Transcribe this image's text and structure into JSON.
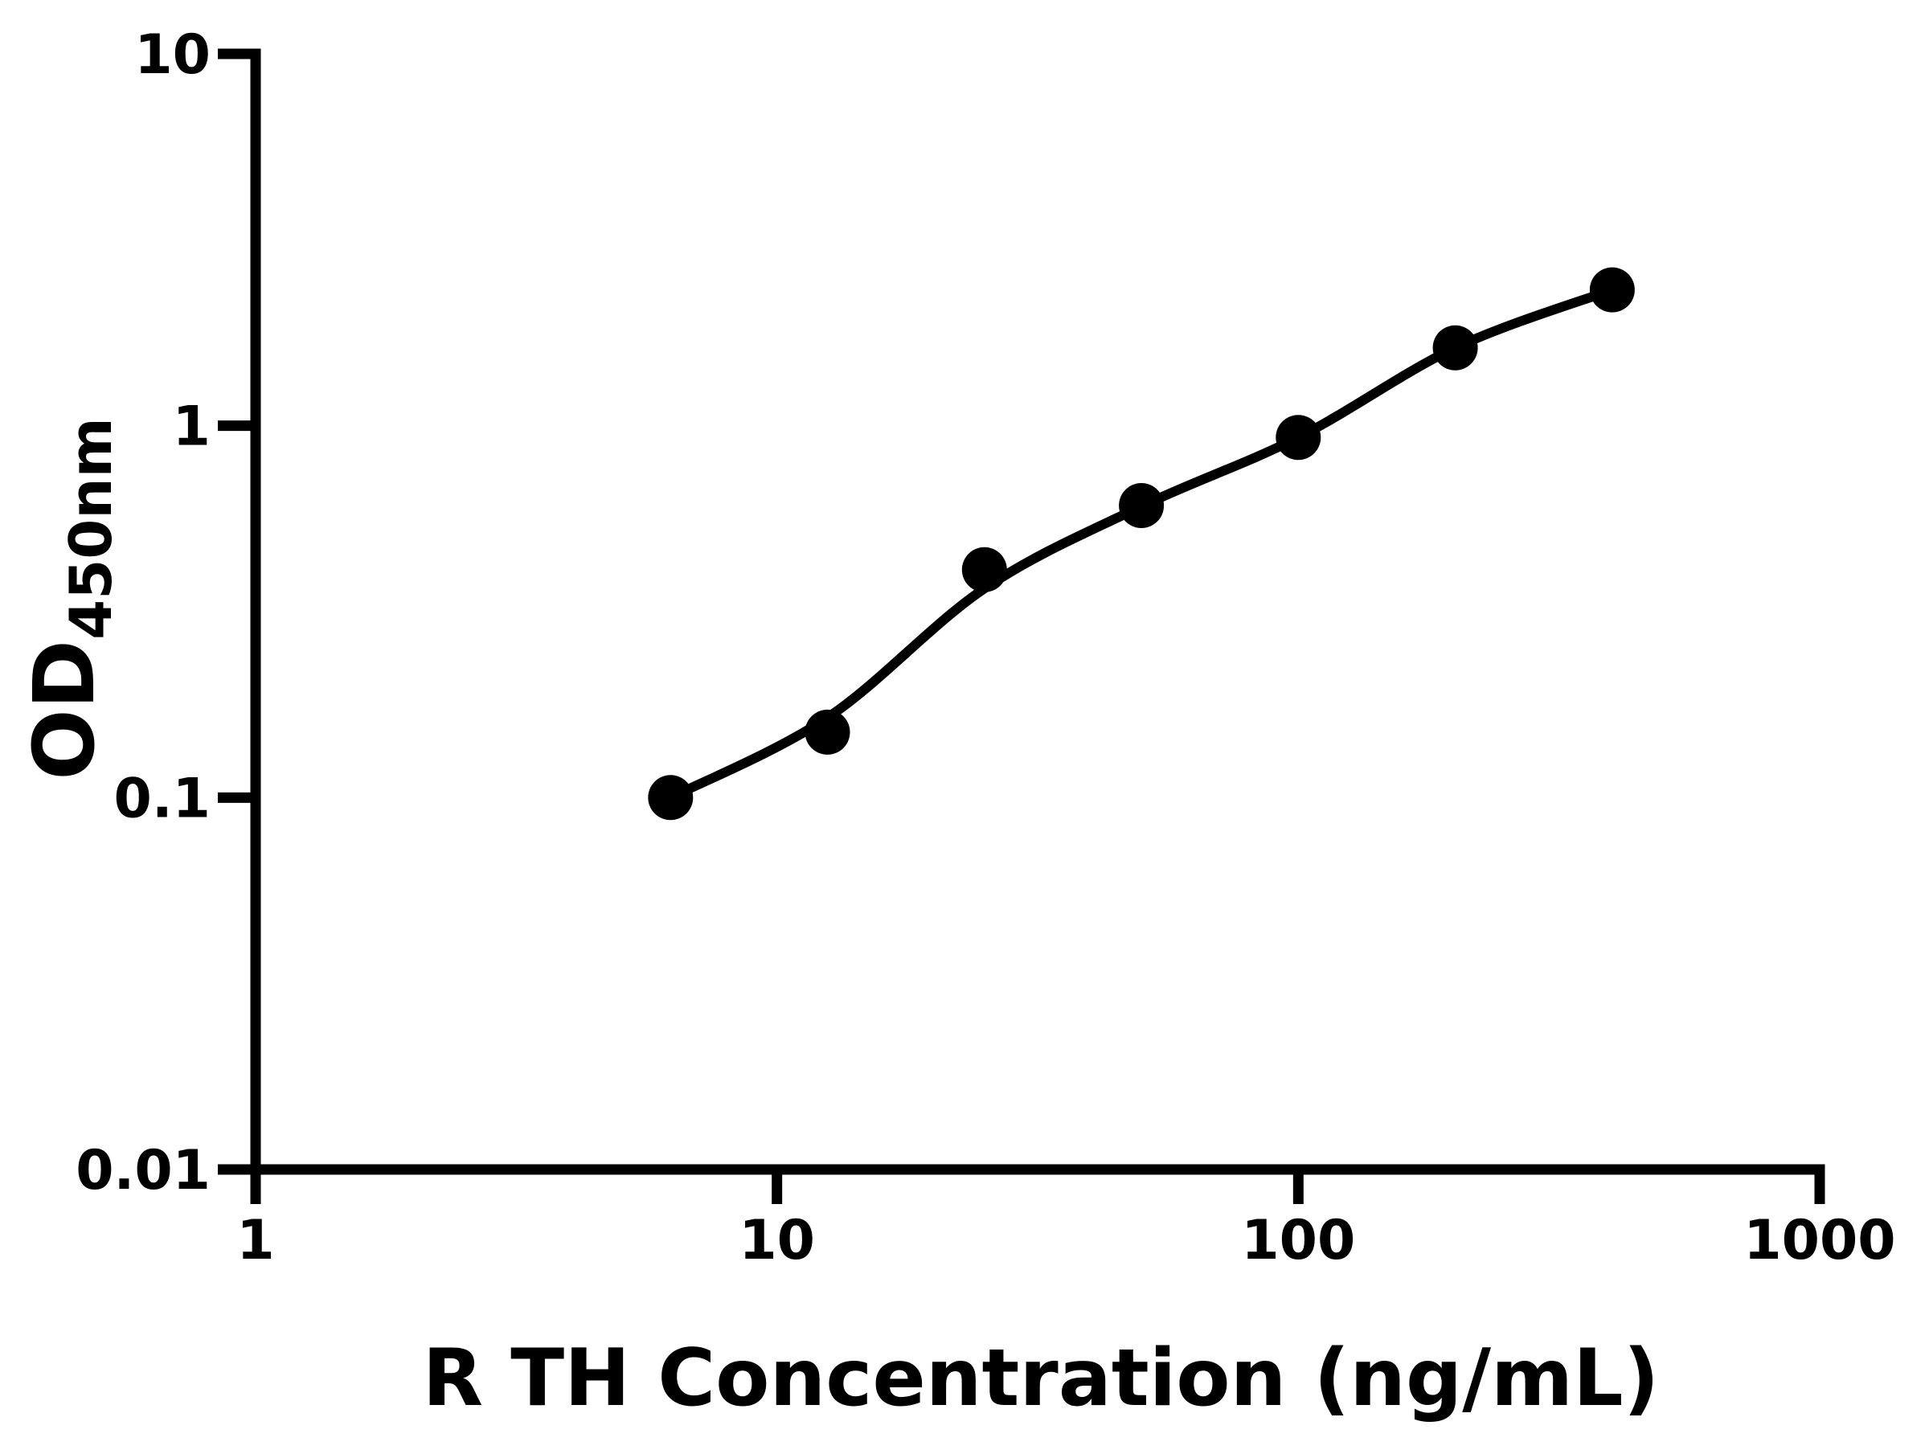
{
  "chart_data": {
    "type": "scatter",
    "title": "",
    "xlabel": "R TH Concentration (ng/mL)",
    "ylabel_main": "OD",
    "ylabel_sub": "450nm",
    "x_scale": "log",
    "y_scale": "log",
    "xlim": [
      1,
      1000
    ],
    "ylim": [
      0.01,
      10
    ],
    "grid": false,
    "legend": "none",
    "x_ticks": [
      {
        "value": 1,
        "label": "1"
      },
      {
        "value": 10,
        "label": "10"
      },
      {
        "value": 100,
        "label": "100"
      },
      {
        "value": 1000,
        "label": "1000"
      }
    ],
    "y_ticks": [
      {
        "value": 10,
        "label": "10"
      },
      {
        "value": 1,
        "label": "1"
      },
      {
        "value": 0.1,
        "label": "0.1"
      },
      {
        "value": 0.01,
        "label": "0.01"
      }
    ],
    "series": [
      {
        "name": "standard-points",
        "type": "scatter",
        "marker": "filled-circle",
        "color": "#000000",
        "x": [
          6.25,
          12.5,
          25,
          50,
          100,
          200,
          400
        ],
        "y": [
          0.1,
          0.15,
          0.41,
          0.61,
          0.93,
          1.62,
          2.32
        ]
      },
      {
        "name": "fit-curve",
        "type": "line",
        "color": "#000000",
        "x": [
          6.25,
          12.5,
          25,
          50,
          100,
          200,
          400
        ],
        "y": [
          0.1,
          0.164,
          0.365,
          0.607,
          0.93,
          1.62,
          2.32
        ]
      }
    ],
    "colors": {
      "foreground": "#000000",
      "background": "#ffffff"
    }
  }
}
